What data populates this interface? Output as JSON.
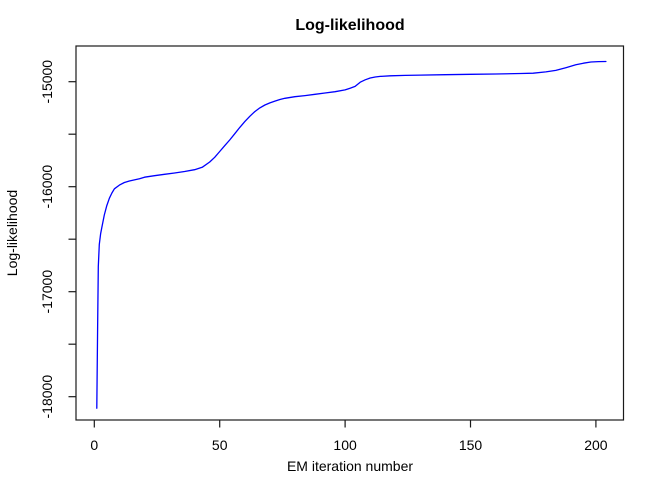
{
  "chart_data": {
    "type": "line",
    "title": "Log-likelihood",
    "xlabel": "EM iteration number",
    "ylabel": "Log-likelihood",
    "xlim": [
      -7.3,
      211
    ],
    "ylim": [
      -18222,
      -14660
    ],
    "grid": false,
    "legend": null,
    "frame_color": "#1a1a1a",
    "text_color": "#000000",
    "background_color": "#ffffff",
    "x_ticks": {
      "values": [
        0,
        50,
        100,
        150,
        200
      ],
      "labels": [
        "0",
        "50",
        "100",
        "150",
        "200"
      ]
    },
    "y_ticks": {
      "major_values": [
        -15000,
        -16000,
        -17000,
        -18000
      ],
      "major_labels": [
        "-15000",
        "-16000",
        "-17000",
        "-18000"
      ],
      "minor_values": [
        -15500,
        -16500,
        -17500
      ]
    },
    "series": [
      {
        "name": "log-likelihood",
        "color": "#0000ff",
        "x": [
          1,
          1.3,
          1.6,
          2,
          2.5,
          3,
          4,
          5,
          6,
          7,
          8,
          10,
          12,
          14,
          16,
          18,
          20,
          24,
          28,
          32,
          36,
          40,
          43,
          46,
          48,
          50,
          52,
          54,
          56,
          58,
          60,
          62,
          64,
          66,
          68,
          70,
          72,
          74,
          76,
          80,
          84,
          88,
          92,
          96,
          100,
          102,
          104,
          106,
          108,
          110,
          112,
          114,
          118,
          124,
          130,
          140,
          150,
          160,
          170,
          175,
          180,
          184,
          188,
          192,
          195,
          198,
          201,
          204
        ],
        "y": [
          -18110,
          -17360,
          -16760,
          -16550,
          -16450,
          -16390,
          -16270,
          -16180,
          -16110,
          -16060,
          -16020,
          -15985,
          -15960,
          -15946,
          -15935,
          -15925,
          -15910,
          -15895,
          -15882,
          -15870,
          -15855,
          -15838,
          -15815,
          -15765,
          -15720,
          -15665,
          -15610,
          -15555,
          -15495,
          -15435,
          -15380,
          -15330,
          -15285,
          -15250,
          -15222,
          -15202,
          -15185,
          -15170,
          -15158,
          -15143,
          -15132,
          -15120,
          -15108,
          -15095,
          -15078,
          -15062,
          -15045,
          -15005,
          -14982,
          -14965,
          -14955,
          -14950,
          -14944,
          -14940,
          -14937,
          -14933,
          -14930,
          -14927,
          -14922,
          -14919,
          -14907,
          -14892,
          -14867,
          -14839,
          -14824,
          -14812,
          -14809,
          -14808
        ]
      }
    ]
  }
}
